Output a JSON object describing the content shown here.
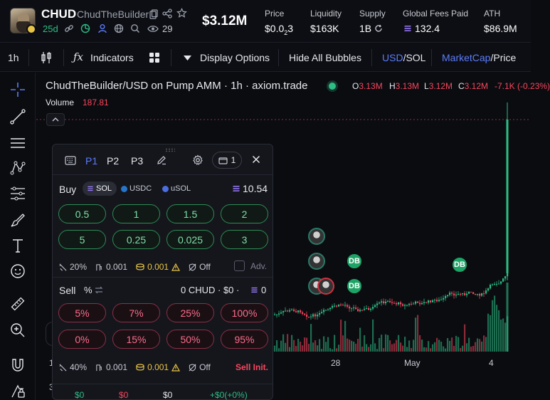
{
  "header": {
    "ticker": "CHUD",
    "name": "ChudTheBuilder",
    "age": "25d",
    "holders_count": "29",
    "market_cap": "$3.12M",
    "stats": [
      {
        "label": "Price",
        "value_main": "$0.0",
        "value_sub": "2",
        "value_tail": "3"
      },
      {
        "label": "Liquidity",
        "value": "$163K"
      },
      {
        "label": "Supply",
        "value": "1B"
      },
      {
        "label": "Global Fees Paid",
        "value": "132.4"
      },
      {
        "label": "ATH",
        "value": "$86.9M"
      }
    ]
  },
  "toolbar": {
    "interval": "1h",
    "indicators": "Indicators",
    "display_options": "Display Options",
    "hide_bubbles": "Hide All Bubbles",
    "pair_usd": "USD",
    "pair_sep": "/",
    "pair_sol": "SOL",
    "mode_mcap": "MarketCap",
    "mode_sep": "/",
    "mode_price": "Price"
  },
  "chart": {
    "legend": "ChudTheBuilder/USD on Pump AMM · 1h · axiom.trade",
    "ohlc": [
      {
        "k": "O",
        "v": "3.13M"
      },
      {
        "k": "H",
        "v": "3.13M"
      },
      {
        "k": "L",
        "v": "3.12M"
      },
      {
        "k": "C",
        "v": "3.12M"
      }
    ],
    "change": "-7.1K (-0.23%)",
    "volume_label": "Volume",
    "volume_value": "187.81",
    "x_labels": [
      "28",
      "May",
      "4"
    ],
    "bubble_db": "DB",
    "bottom_left_1": "1",
    "bottom_left_2": "3"
  },
  "panel": {
    "tabs": [
      "P1",
      "P2",
      "P3"
    ],
    "wallet_count": "1",
    "buy": {
      "label": "Buy",
      "currencies": [
        "SOL",
        "USDC",
        "uSOL"
      ],
      "balance": "10.54",
      "amounts": [
        "0.5",
        "1",
        "1.5",
        "2",
        "5",
        "0.25",
        "0.025",
        "3"
      ],
      "slippage": "20%",
      "priority": "0.001",
      "bribe": "0.001",
      "mev": "Off",
      "adv": "Adv."
    },
    "sell": {
      "label": "Sell",
      "unit": "%",
      "holdings": "0 CHUD · $0 · ",
      "holdings_sol": "0",
      "percents": [
        "5%",
        "7%",
        "25%",
        "100%",
        "0%",
        "15%",
        "50%",
        "95%"
      ],
      "slippage": "40%",
      "priority": "0.001",
      "bribe": "0.001",
      "mev": "Off",
      "sell_init": "Sell Init."
    },
    "footer": [
      "$0",
      "$0",
      "$0",
      "+$0(+0%)"
    ]
  },
  "colors": {
    "green": "#2ebd85",
    "red": "#f6465d",
    "accent_blue": "#5b7cfa"
  }
}
